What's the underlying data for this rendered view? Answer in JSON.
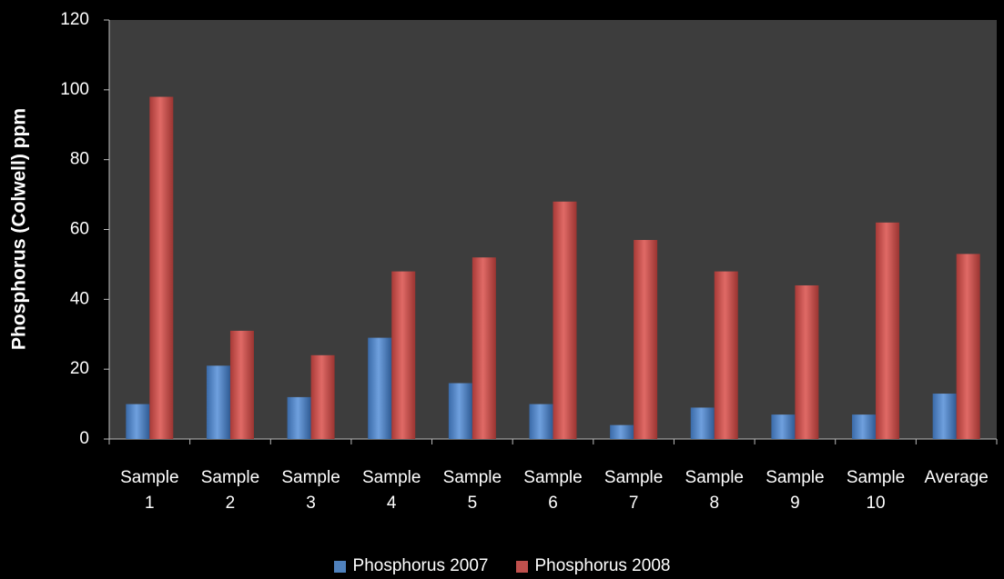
{
  "chart_data": {
    "type": "bar",
    "y_label": "Phosphorus (Colwell) ppm",
    "categories": [
      "Sample 1",
      "Sample 2",
      "Sample 3",
      "Sample 4",
      "Sample 5",
      "Sample 6",
      "Sample 7",
      "Sample 8",
      "Sample 9",
      "Sample 10",
      "Average"
    ],
    "series": [
      {
        "name": "Phosphorus 2007",
        "color": "#4f81bd",
        "values": [
          10,
          21,
          12,
          29,
          16,
          10,
          4,
          9,
          7,
          7,
          13
        ]
      },
      {
        "name": "Phosphorus 2008",
        "color": "#c0504d",
        "values": [
          98,
          31,
          24,
          48,
          52,
          68,
          57,
          48,
          44,
          62,
          53
        ]
      }
    ],
    "ylim": [
      0,
      120
    ],
    "yticks": [
      0,
      20,
      40,
      60,
      80,
      100,
      120
    ],
    "grid": false,
    "legend": "bottom"
  }
}
